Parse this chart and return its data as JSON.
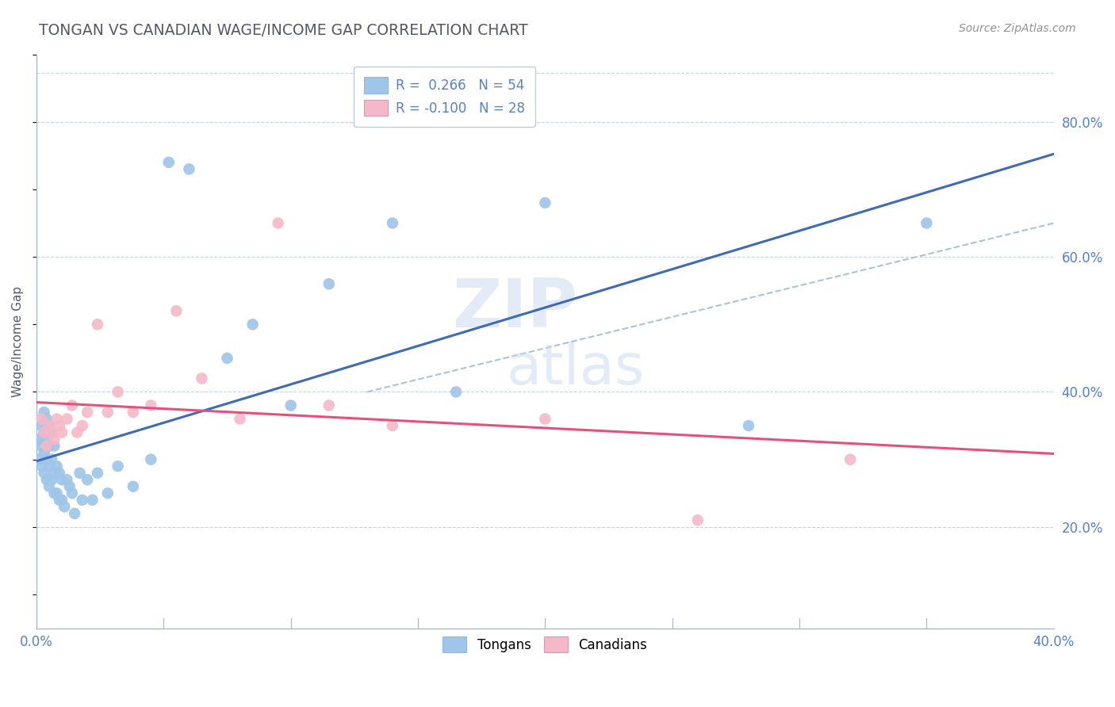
{
  "title": "TONGAN VS CANADIAN WAGE/INCOME GAP CORRELATION CHART",
  "source": "Source: ZipAtlas.com",
  "ylabel": "Wage/Income Gap",
  "tongans_color": "#9fc5e8",
  "canadians_color": "#f4b8c8",
  "trendline_tongan_color": "#3d6bb5",
  "trendline_canadian_color": "#e8507a",
  "trendline_dashed_color": "#aac4d5",
  "background_color": "#ffffff",
  "grid_color": "#c8d4de",
  "axis_color": "#aabbc8",
  "label_color": "#5580cc",
  "title_color": "#555868",
  "source_color": "#909098",
  "r_tongan": 0.266,
  "n_tongan": 54,
  "r_canadian": -0.1,
  "n_canadian": 28,
  "xlim": [
    0.0,
    0.4
  ],
  "ylim": [
    0.05,
    0.9
  ],
  "right_yticks": [
    0.2,
    0.4,
    0.6,
    0.8
  ],
  "right_yticklabels": [
    "20.0%",
    "40.0%",
    "60.0%",
    "80.0%"
  ],
  "tongans_x": [
    0.001,
    0.001,
    0.002,
    0.002,
    0.002,
    0.003,
    0.003,
    0.003,
    0.003,
    0.004,
    0.004,
    0.004,
    0.004,
    0.005,
    0.005,
    0.005,
    0.005,
    0.006,
    0.006,
    0.006,
    0.007,
    0.007,
    0.007,
    0.008,
    0.008,
    0.009,
    0.009,
    0.01,
    0.01,
    0.011,
    0.012,
    0.013,
    0.014,
    0.015,
    0.017,
    0.018,
    0.02,
    0.022,
    0.024,
    0.028,
    0.032,
    0.038,
    0.045,
    0.052,
    0.06,
    0.075,
    0.085,
    0.1,
    0.115,
    0.14,
    0.165,
    0.2,
    0.28,
    0.35
  ],
  "tongans_y": [
    0.3,
    0.33,
    0.29,
    0.32,
    0.35,
    0.28,
    0.31,
    0.34,
    0.37,
    0.27,
    0.3,
    0.33,
    0.36,
    0.26,
    0.29,
    0.32,
    0.35,
    0.27,
    0.3,
    0.34,
    0.25,
    0.28,
    0.32,
    0.25,
    0.29,
    0.24,
    0.28,
    0.24,
    0.27,
    0.23,
    0.27,
    0.26,
    0.25,
    0.22,
    0.28,
    0.24,
    0.27,
    0.24,
    0.28,
    0.25,
    0.29,
    0.26,
    0.3,
    0.74,
    0.73,
    0.45,
    0.5,
    0.38,
    0.56,
    0.65,
    0.4,
    0.68,
    0.35,
    0.65
  ],
  "canadians_x": [
    0.002,
    0.003,
    0.004,
    0.005,
    0.006,
    0.007,
    0.008,
    0.009,
    0.01,
    0.012,
    0.014,
    0.016,
    0.018,
    0.02,
    0.024,
    0.028,
    0.032,
    0.038,
    0.045,
    0.055,
    0.065,
    0.08,
    0.095,
    0.115,
    0.14,
    0.2,
    0.26,
    0.32
  ],
  "canadians_y": [
    0.36,
    0.34,
    0.32,
    0.35,
    0.34,
    0.33,
    0.36,
    0.35,
    0.34,
    0.36,
    0.38,
    0.34,
    0.35,
    0.37,
    0.5,
    0.37,
    0.4,
    0.37,
    0.38,
    0.52,
    0.42,
    0.36,
    0.65,
    0.38,
    0.35,
    0.36,
    0.21,
    0.3
  ],
  "dashed_line_x": [
    0.13,
    0.4
  ],
  "dashed_line_y": [
    0.4,
    0.65
  ]
}
